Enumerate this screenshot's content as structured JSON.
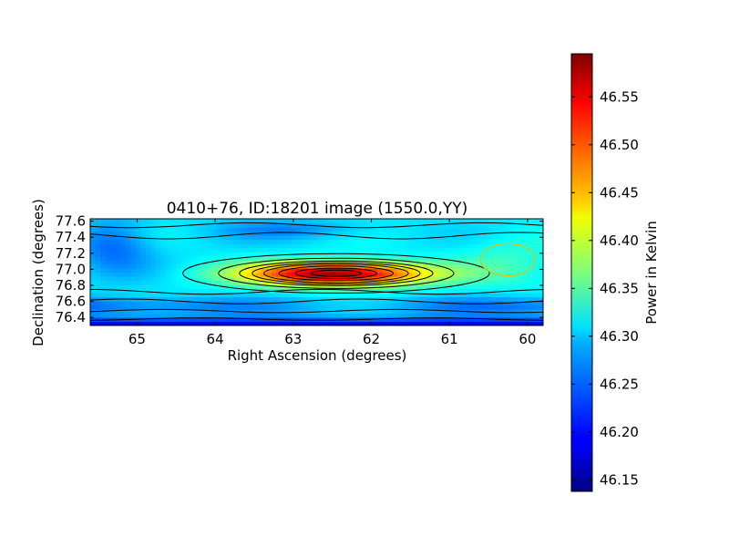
{
  "chart_data": {
    "type": "heatmap",
    "title": "0410+76, ID:18201 image (1550.0,YY)",
    "xlabel": "Right Ascension (degrees)",
    "ylabel": "Declination (degrees)",
    "xlim": [
      65.6,
      59.8
    ],
    "ylim": [
      76.3,
      77.63
    ],
    "xticks": [
      65,
      64,
      63,
      62,
      61,
      60
    ],
    "yticks": [
      76.4,
      76.6,
      76.8,
      77.0,
      77.2,
      77.4,
      77.6
    ],
    "xtick_labels": [
      "65",
      "64",
      "63",
      "62",
      "61",
      "60"
    ],
    "ytick_labels": [
      "76.4",
      "76.6",
      "76.8",
      "77.0",
      "77.2",
      "77.4",
      "77.6"
    ],
    "colormap": "jet",
    "colorbar": {
      "label": "Power in Kelvin",
      "range": [
        46.138,
        46.595
      ],
      "ticks": [
        46.15,
        46.2,
        46.25,
        46.3,
        46.35,
        46.4,
        46.45,
        46.5,
        46.55
      ],
      "tick_labels": [
        "46.15",
        "46.20",
        "46.25",
        "46.30",
        "46.35",
        "46.40",
        "46.45",
        "46.50",
        "46.55"
      ]
    },
    "peak": {
      "ra": 62.45,
      "dec": 76.95,
      "value": 46.59
    },
    "background_level": 46.3,
    "contour_levels": [
      46.16,
      46.2,
      46.24,
      46.28,
      46.32,
      46.36,
      46.4,
      46.43,
      46.46,
      46.5,
      46.54,
      46.57
    ],
    "beam": {
      "ra": 60.25,
      "dec": 77.12,
      "color": "#c8c820"
    }
  }
}
